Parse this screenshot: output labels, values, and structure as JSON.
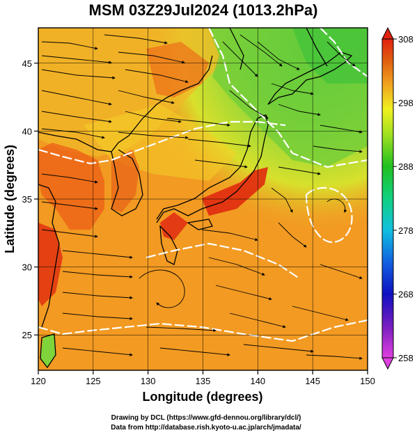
{
  "title": "MSM 03Z29Jul2024 (1013.2hPa)",
  "x_axis": {
    "label": "Longitude (degrees)",
    "range": [
      120,
      150
    ],
    "ticks": [
      120,
      125,
      130,
      135,
      140,
      145,
      150
    ],
    "tick_labels": [
      "120",
      "125",
      "130",
      "135",
      "140",
      "145",
      "150"
    ]
  },
  "y_axis": {
    "label": "Latitude  (degrees)",
    "range": [
      22.4,
      47.6
    ],
    "ticks": [
      25,
      30,
      35,
      40,
      45
    ],
    "tick_labels": [
      "25",
      "30",
      "35",
      "40",
      "45"
    ]
  },
  "colorbar": {
    "range": [
      258,
      308
    ],
    "ticks": [
      258,
      268,
      278,
      288,
      298,
      308
    ],
    "tick_labels": [
      "258",
      "268",
      "278",
      "288",
      "298",
      "308"
    ],
    "colors": [
      "#e040e0",
      "#8020c0",
      "#1010c0",
      "#1060e0",
      "#10c0e0",
      "#10d080",
      "#20c020",
      "#a0e020",
      "#f0f020",
      "#f0a020",
      "#e06010",
      "#e02010"
    ]
  },
  "credits": [
    "Drawing by DCL (https://www.gfd-dennou.org/library/dcl/)",
    "Data from http://database.rish.kyoto-u.ac.jp/arch/jmadata/"
  ],
  "field_colors": {
    "warm_sea": "#f29a22",
    "hot_land": "#ec5a14",
    "very_hot": "#e02a10",
    "yellow_band": "#f4d028",
    "green_north": "#7ed43a",
    "deep_green": "#38c038",
    "land_outline": "#000000",
    "contour": "#ffffff"
  }
}
